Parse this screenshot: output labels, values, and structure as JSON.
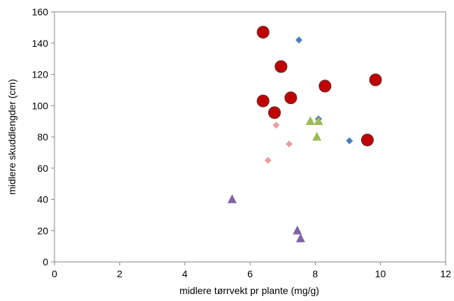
{
  "chart_data": {
    "type": "scatter",
    "xlabel": "midlere tørrvekt pr plante (mg/g)",
    "ylabel": "midlere skuddlengder (cm)",
    "xlim": [
      0,
      12
    ],
    "ylim": [
      0,
      160
    ],
    "xticks": [
      "0",
      "2",
      "4",
      "6",
      "8",
      "10",
      "12"
    ],
    "yticks": [
      "0",
      "20",
      "40",
      "60",
      "80",
      "100",
      "120",
      "140",
      "160"
    ],
    "grid": false,
    "legend": "none",
    "series": [
      {
        "marker": "diamond",
        "color": "#4a7ebb",
        "points": [
          [
            7.5,
            142
          ],
          [
            8.1,
            91.5
          ],
          [
            9.05,
            77.5
          ]
        ]
      },
      {
        "marker": "diamond",
        "color": "#e6a19e",
        "points": [
          [
            6.8,
            87.5
          ],
          [
            6.55,
            65
          ],
          [
            7.2,
            75.5
          ]
        ]
      },
      {
        "marker": "triangle",
        "color": "#9bbb59",
        "points": [
          [
            7.85,
            90
          ],
          [
            8.1,
            90
          ],
          [
            8.05,
            80
          ]
        ]
      },
      {
        "marker": "triangle",
        "color": "#8064a2",
        "points": [
          [
            5.45,
            40
          ],
          [
            7.45,
            20
          ],
          [
            7.55,
            15
          ]
        ]
      },
      {
        "marker": "circle",
        "color": "#c00000",
        "points": [
          [
            6.4,
            147
          ],
          [
            6.95,
            125
          ],
          [
            6.4,
            103
          ],
          [
            7.25,
            105
          ],
          [
            6.75,
            95.5
          ],
          [
            8.3,
            112.5
          ],
          [
            9.85,
            116.5
          ],
          [
            9.6,
            78
          ]
        ]
      }
    ]
  }
}
